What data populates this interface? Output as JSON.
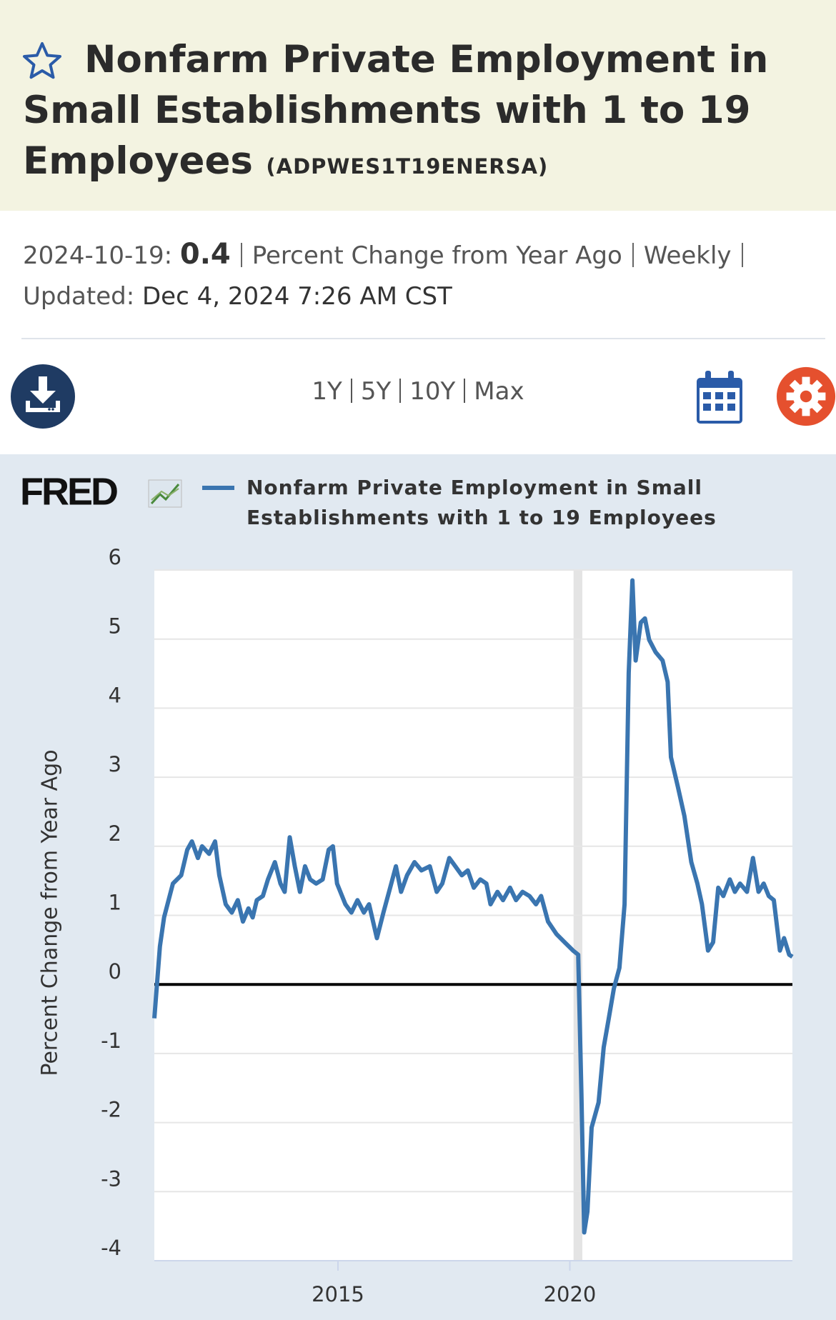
{
  "header": {
    "title": "Nonfarm Private Employment in Small Establishments with 1 to 19 Employees",
    "series_id": "(ADPWES1T19ENERSA)"
  },
  "info": {
    "observation_date": "2024-10-19:",
    "observation_value": 0.4,
    "units": "Percent Change from Year Ago",
    "frequency": "Weekly",
    "updated_label": "Updated:",
    "updated": "Dec 4, 2024 7:26 AM CST"
  },
  "toolbar": {
    "ranges": [
      "1Y",
      "5Y",
      "10Y",
      "Max"
    ]
  },
  "logo": "FRED",
  "chart_data": {
    "type": "line",
    "ylabel": "Percent Change from Year Ago",
    "x": [
      2011.04,
      2011.16,
      2011.25,
      2011.44,
      2011.62,
      2011.75,
      2011.85,
      2011.98,
      2012.07,
      2012.22,
      2012.35,
      2012.44,
      2012.58,
      2012.71,
      2012.84,
      2012.95,
      2013.07,
      2013.16,
      2013.25,
      2013.38,
      2013.49,
      2013.64,
      2013.76,
      2013.85,
      2013.96,
      2014.07,
      2014.18,
      2014.29,
      2014.4,
      2014.53,
      2014.67,
      2014.8,
      2014.89,
      2014.98,
      2015.16,
      2015.29,
      2015.42,
      2015.56,
      2015.67,
      2015.84,
      2015.98,
      2016.15,
      2016.25,
      2016.36,
      2016.49,
      2016.65,
      2016.8,
      2016.98,
      2017.13,
      2017.25,
      2017.4,
      2017.53,
      2017.67,
      2017.8,
      2017.93,
      2018.07,
      2018.2,
      2018.29,
      2018.44,
      2018.56,
      2018.71,
      2018.84,
      2018.98,
      2019.13,
      2019.27,
      2019.38,
      2019.53,
      2019.71,
      2019.89,
      2020.07,
      2020.18,
      2020.25,
      2020.31,
      2020.38,
      2020.47,
      2020.62,
      2020.73,
      2020.84,
      2020.95,
      2021.07,
      2021.18,
      2021.27,
      2021.35,
      2021.42,
      2021.53,
      2021.62,
      2021.71,
      2021.85,
      2022.0,
      2022.11,
      2022.18,
      2022.33,
      2022.47,
      2022.62,
      2022.75,
      2022.85,
      2022.98,
      2023.09,
      2023.2,
      2023.31,
      2023.45,
      2023.56,
      2023.67,
      2023.82,
      2023.95,
      2024.07,
      2024.18,
      2024.29,
      2024.4,
      2024.53,
      2024.62,
      2024.73,
      2024.8
    ],
    "series": [
      {
        "name": "Nonfarm Private Employment in Small Establishments with 1 to 19 Employees",
        "color": "#3a75b0",
        "values": [
          -0.49,
          0.55,
          0.97,
          1.46,
          1.58,
          1.95,
          2.07,
          1.83,
          2.0,
          1.89,
          2.07,
          1.58,
          1.16,
          1.04,
          1.22,
          0.91,
          1.1,
          0.97,
          1.22,
          1.28,
          1.52,
          1.77,
          1.46,
          1.34,
          2.13,
          1.71,
          1.34,
          1.71,
          1.52,
          1.46,
          1.52,
          1.95,
          2.0,
          1.46,
          1.16,
          1.04,
          1.22,
          1.04,
          1.16,
          0.67,
          1.04,
          1.46,
          1.71,
          1.34,
          1.58,
          1.77,
          1.65,
          1.71,
          1.34,
          1.46,
          1.83,
          1.71,
          1.58,
          1.65,
          1.4,
          1.52,
          1.46,
          1.16,
          1.34,
          1.22,
          1.4,
          1.22,
          1.34,
          1.28,
          1.16,
          1.28,
          0.91,
          0.73,
          0.61,
          0.49,
          0.43,
          -1.58,
          -3.59,
          -3.29,
          -2.07,
          -1.71,
          -0.91,
          -0.49,
          -0.06,
          0.24,
          1.16,
          4.51,
          5.85,
          4.69,
          5.24,
          5.3,
          4.99,
          4.81,
          4.69,
          4.38,
          3.29,
          2.86,
          2.44,
          1.77,
          1.46,
          1.16,
          0.49,
          0.61,
          1.4,
          1.28,
          1.52,
          1.34,
          1.46,
          1.34,
          1.83,
          1.34,
          1.46,
          1.28,
          1.22,
          0.49,
          0.67,
          0.43,
          0.4
        ]
      }
    ],
    "recessions": [
      [
        2020.08,
        2020.27
      ]
    ],
    "xlim": [
      2011.04,
      2024.8
    ],
    "xticks": [
      2015,
      2020
    ],
    "ylim": [
      -4,
      6
    ],
    "yticks": [
      -4,
      -3,
      -2,
      -1,
      0,
      1,
      2,
      3,
      4,
      5,
      6
    ],
    "grid": true
  }
}
